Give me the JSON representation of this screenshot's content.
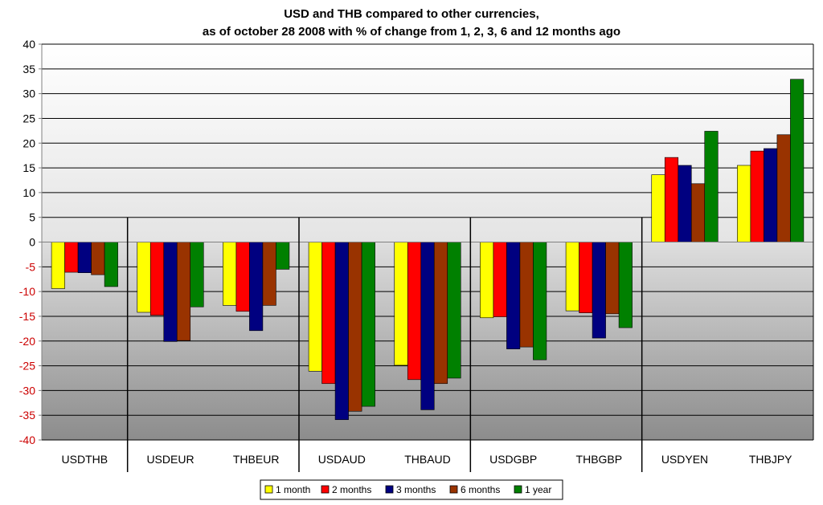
{
  "chart_data": {
    "type": "bar",
    "title_lines": [
      "USD and THB compared to other currencies,",
      "as of october 28 2008 with % of change from 1, 2, 3, 6 and 12 months ago"
    ],
    "xlabel": "",
    "ylabel": "",
    "ylim": [
      -40,
      40
    ],
    "yticks": [
      40,
      35,
      30,
      25,
      20,
      15,
      10,
      5,
      0,
      -5,
      -10,
      -15,
      -20,
      -25,
      -30,
      -35,
      -40
    ],
    "grid": true,
    "legend_position": "bottom-center",
    "categories": [
      "USDTHB",
      "USDEUR",
      "THBEUR",
      "USDAUD",
      "THBAUD",
      "USDGBP",
      "THBGBP",
      "USDYEN",
      "THBJPY"
    ],
    "group_separators_after": [
      0,
      2,
      4,
      6
    ],
    "series": [
      {
        "name": "1 month",
        "color": "#ffff00",
        "values": [
          -9.4,
          -14.2,
          -12.8,
          -26.1,
          -24.9,
          -15.3,
          -13.9,
          13.6,
          15.5
        ]
      },
      {
        "name": "2 months",
        "color": "#ff0000",
        "values": [
          -6.1,
          -14.8,
          -14.0,
          -28.6,
          -27.8,
          -15.1,
          -14.3,
          17.1,
          18.4
        ]
      },
      {
        "name": "3 months",
        "color": "#000080",
        "values": [
          -6.2,
          -20.1,
          -17.9,
          -35.9,
          -33.9,
          -21.6,
          -19.4,
          15.5,
          18.9
        ]
      },
      {
        "name": "6 months",
        "color": "#993300",
        "values": [
          -6.6,
          -19.9,
          -12.8,
          -34.2,
          -28.6,
          -21.2,
          -14.5,
          11.8,
          21.7
        ]
      },
      {
        "name": "1 year",
        "color": "#008000",
        "values": [
          -9.0,
          -13.1,
          -5.5,
          -33.2,
          -27.5,
          -23.8,
          -17.3,
          22.4,
          32.9
        ]
      }
    ],
    "colors": {
      "positive_tick": "#000000",
      "negative_tick": "#cc0000",
      "axis_line": "#808080",
      "grid_line": "#000000"
    }
  }
}
